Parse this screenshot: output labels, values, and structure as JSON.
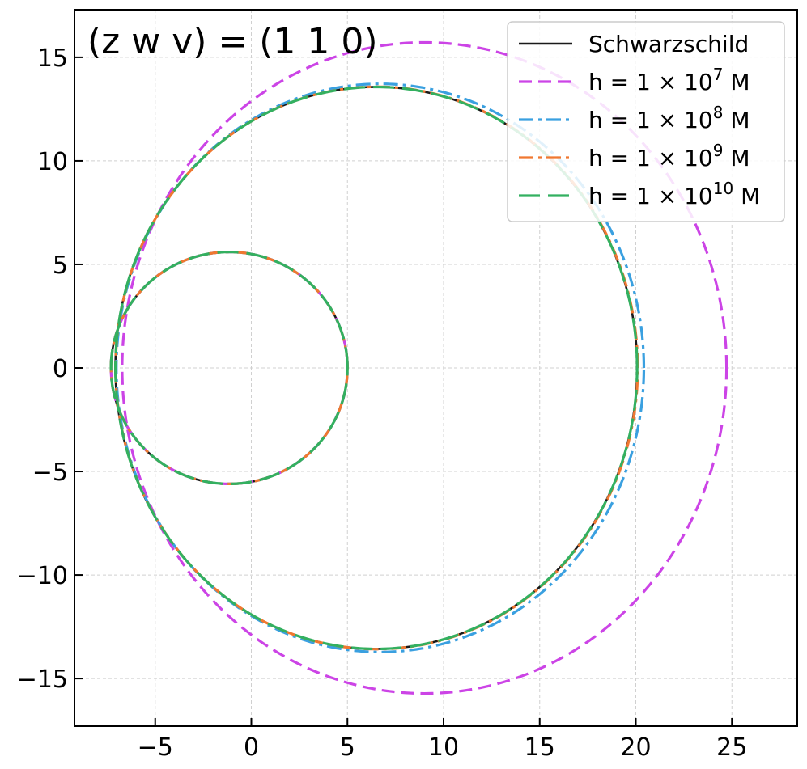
{
  "chart_data": {
    "type": "line",
    "title": "(z w v) = (1 1 0)",
    "xlabel": "",
    "ylabel": "",
    "xlim": [
      -9.2,
      28.4
    ],
    "ylim": [
      -17.3,
      17.3
    ],
    "xticks": [
      -5,
      0,
      5,
      10,
      15,
      20,
      25
    ],
    "yticks": [
      -15,
      -10,
      -5,
      0,
      5,
      10,
      15
    ],
    "xtick_labels": [
      "−5",
      "0",
      "5",
      "10",
      "15",
      "20",
      "25"
    ],
    "ytick_labels": [
      "−15",
      "−10",
      "−5",
      "0",
      "5",
      "10",
      "15"
    ],
    "grid": true,
    "legend_position": "top-right",
    "series": [
      {
        "name": "Schwarzschild",
        "legend": {
          "base": "Schwarzschild",
          "exp": ""
        },
        "color": "#1a1a1a",
        "dash": "solid",
        "outer": {
          "cx": 6.5,
          "cy": 0,
          "r": 13.57,
          "xmin": -7.3
        },
        "inner": {
          "cx": -0.6,
          "cy": 0,
          "r": 5.6,
          "xmin": -7.3
        }
      },
      {
        "name": "h = 1 × 10^7 M",
        "legend": {
          "base": "h = 1 × 10",
          "exp": "7",
          "tail": " M"
        },
        "color": "#cc44e6",
        "dash": "dashed",
        "outer": {
          "cx": 9.0,
          "cy": 0,
          "r": 15.72,
          "xmin": -7.7
        },
        "inner": {
          "cx": -0.6,
          "cy": 0,
          "r": 5.6,
          "xmin": -7.3
        }
      },
      {
        "name": "h = 1 × 10^8 M",
        "legend": {
          "base": "h = 1 × 10",
          "exp": "8",
          "tail": " M"
        },
        "color": "#3aa0e0",
        "dash": "dashdot",
        "outer": {
          "cx": 6.7,
          "cy": 0,
          "r": 13.72,
          "xmin": -7.4
        },
        "inner": {
          "cx": -0.6,
          "cy": 0,
          "r": 5.6,
          "xmin": -7.3
        }
      },
      {
        "name": "h = 1 × 10^9 M",
        "legend": {
          "base": "h = 1 × 10",
          "exp": "9",
          "tail": " M"
        },
        "color": "#f07830",
        "dash": "dashdot",
        "outer": {
          "cx": 6.52,
          "cy": 0,
          "r": 13.58,
          "xmin": -7.3
        },
        "inner": {
          "cx": -0.6,
          "cy": 0,
          "r": 5.6,
          "xmin": -7.3
        }
      },
      {
        "name": "h = 1 × 10^10 M",
        "legend": {
          "base": "h = 1 × 10",
          "exp": "10",
          "tail": " M"
        },
        "color": "#33b060",
        "dash": "longdash",
        "outer": {
          "cx": 6.5,
          "cy": 0,
          "r": 13.57,
          "xmin": -7.3
        },
        "inner": {
          "cx": -0.6,
          "cy": 0,
          "r": 5.6,
          "xmin": -7.3
        }
      }
    ]
  }
}
